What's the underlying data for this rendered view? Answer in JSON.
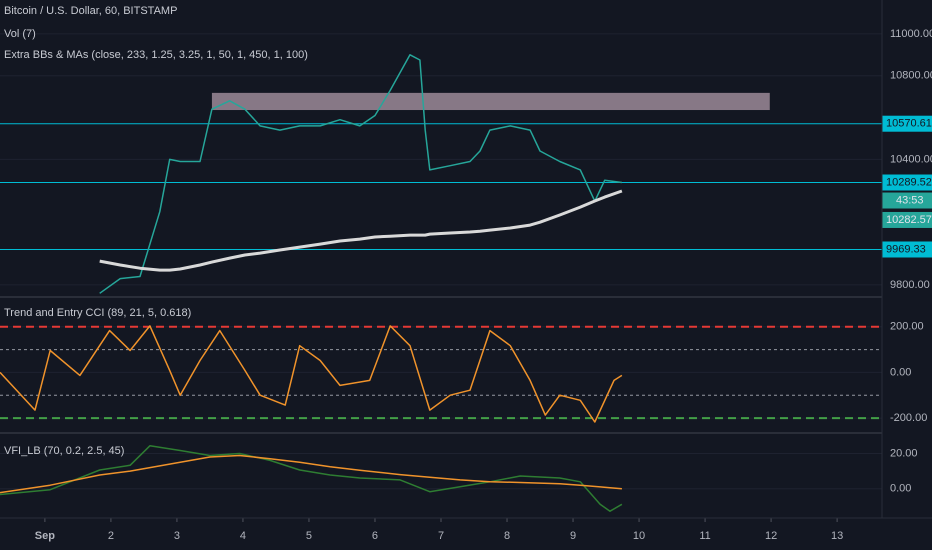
{
  "chart_data": [
    {
      "type": "line",
      "title": "Bitcoin / U.S. Dollar, 60, BITSTAMP",
      "subtitle": "Vol (7)",
      "annotations": [
        "Extra BBs & MAs (close, 233, 1.25, 3.25, 1, 50, 1, 450, 1, 100)"
      ],
      "x": [
        1.83,
        2.14,
        2.44,
        2.74,
        2.89,
        3.05,
        3.35,
        3.53,
        3.8,
        4.03,
        4.26,
        4.56,
        4.86,
        5.17,
        5.47,
        5.77,
        6.0,
        6.23,
        6.53,
        6.68,
        6.76,
        6.83,
        7.14,
        7.44,
        7.59,
        7.74,
        8.05,
        8.35,
        8.5,
        8.8,
        9.11,
        9.33,
        9.48,
        9.74
      ],
      "series": [
        {
          "color": "#26a69a",
          "values": [
            9760,
            9830,
            9840,
            10150,
            10400,
            10390,
            10390,
            10640,
            10680,
            10640,
            10560,
            10540,
            10560,
            10560,
            10590,
            10560,
            10610,
            10730,
            10900,
            10875,
            10540,
            10350,
            10370,
            10390,
            10440,
            10540,
            10560,
            10540,
            10440,
            10390,
            10350,
            10200,
            10300,
            10289.52
          ]
        },
        {
          "color": "#d9d9d9",
          "values": [
            9914,
            9895,
            9880,
            9871,
            9871,
            9876,
            9895,
            9909,
            9928,
            9943,
            9952,
            9967,
            9981,
            9995,
            10010,
            10019,
            10029,
            10033,
            10038,
            10038,
            10038,
            10043,
            10048,
            10053,
            10057,
            10062,
            10072,
            10086,
            10100,
            10134,
            10172,
            10201,
            10220,
            10249
          ]
        }
      ],
      "xlim": [
        0.32,
        13.68
      ],
      "xticks": [
        {
          "value": 1,
          "label": "Sep"
        },
        2,
        3,
        4,
        5,
        6,
        7,
        8,
        9,
        10,
        11,
        12,
        13
      ],
      "ylim": [
        9747,
        11162
      ],
      "yticks": [
        {
          "value": 9800,
          "label": "9800.00"
        },
        {
          "value": 10400,
          "label": "10400.00"
        },
        {
          "value": 10800,
          "label": "10800.00"
        },
        {
          "value": 11000,
          "label": "11000.00"
        }
      ],
      "levels": [
        10570.61,
        10289.52,
        9969.33
      ],
      "level_color": "#00bcd4",
      "price_labels": [
        10282.57
      ],
      "countdown": "43:53",
      "zone": {
        "x": [
          3.53,
          11.98
        ],
        "y": [
          10636,
          10718
        ],
        "color": "#e8c8d8"
      }
    },
    {
      "type": "line",
      "title": "Trend and Entry CCI (89, 21, 5, 0.618)",
      "x": [
        0.32,
        0.85,
        1.08,
        1.53,
        1.98,
        2.29,
        2.59,
        2.89,
        3.05,
        3.35,
        3.65,
        4.03,
        4.26,
        4.64,
        4.86,
        5.17,
        5.47,
        5.92,
        6.23,
        6.53,
        6.83,
        7.14,
        7.44,
        7.74,
        8.05,
        8.35,
        8.58,
        8.8,
        9.11,
        9.33,
        9.62,
        9.74
      ],
      "series": [
        {
          "color": "#f0932b",
          "values": [
            0,
            -165,
            96,
            -13,
            183,
            96,
            204,
            9,
            -100,
            52,
            183,
            9,
            -100,
            -143,
            117,
            52,
            -57,
            -35,
            204,
            117,
            -165,
            -100,
            -78,
            183,
            117,
            -35,
            -187,
            -100,
            -122,
            -217,
            -35,
            -13
          ]
        }
      ],
      "ylim": [
        -261,
        326
      ],
      "yticks": [
        {
          "value": -200,
          "label": "-200.00"
        },
        {
          "value": 0,
          "label": "0.00"
        },
        {
          "value": 200,
          "label": "200.00"
        }
      ],
      "levels": [
        200,
        100,
        -100,
        -200
      ],
      "level_colors": [
        "#e53935",
        "#9598a1",
        "#9598a1",
        "#43a047"
      ]
    },
    {
      "type": "line",
      "title": "VFI_LB (70, 0.2, 2.5, 45)",
      "x": [
        0.32,
        1.08,
        1.83,
        2.29,
        2.59,
        3.05,
        3.5,
        3.95,
        4.41,
        4.86,
        5.32,
        5.77,
        6.38,
        6.83,
        7.29,
        7.74,
        8.2,
        8.8,
        9.11,
        9.41,
        9.56,
        9.74
      ],
      "series": [
        {
          "color": "#2e7d32",
          "values": [
            -3.3,
            -0.6,
            10.6,
            13.3,
            24.4,
            21.7,
            18.9,
            20,
            16.1,
            10.6,
            7.8,
            6.1,
            5,
            -1.7,
            1.1,
            3.9,
            7.2,
            6.1,
            3.9,
            -8.9,
            -12.8,
            -8.9
          ]
        },
        {
          "color": "#f0932b",
          "values": [
            -2.2,
            2,
            7.8,
            10,
            12,
            15,
            18,
            18.9,
            17,
            15,
            12.5,
            10.5,
            8,
            6.5,
            5,
            4,
            3.5,
            2.8,
            2,
            1,
            0.5,
            0
          ]
        }
      ],
      "ylim": [
        -16.1,
        31.1
      ],
      "yticks": [
        {
          "value": 0,
          "label": "0.00"
        },
        {
          "value": 20,
          "label": "20.00"
        }
      ]
    }
  ]
}
